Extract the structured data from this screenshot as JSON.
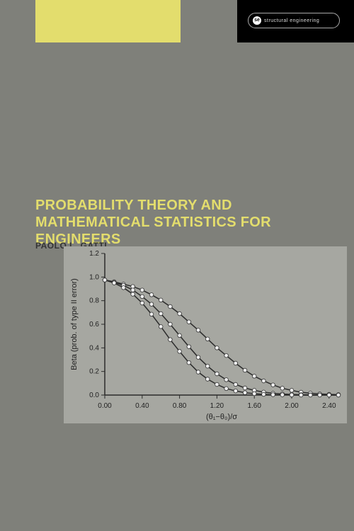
{
  "top_bar": {
    "yellow_color": "#e3dd6d",
    "black_color": "#000000",
    "se_badge": {
      "circle_text": "se",
      "label": "structural engineering"
    }
  },
  "title": {
    "line1": "PROBABILITY THEORY AND",
    "line2": "MATHEMATICAL STATISTICS FOR ENGINEERS",
    "color": "#e3dd6d",
    "fontsize": 20
  },
  "author": "PAOLO L. GATTI",
  "chart": {
    "type": "line",
    "background_color": "#a6a7a1",
    "axis_color": "#2b2b2b",
    "xlabel": "(θ₁−θ₀)/σ",
    "ylabel": "Beta (prob. of type II error)",
    "label_fontsize": 11,
    "tick_fontsize": 10,
    "xlim": [
      0.0,
      2.5
    ],
    "ylim": [
      0.0,
      1.2
    ],
    "xticks": [
      0.0,
      0.4,
      0.8,
      1.2,
      1.6,
      2.0,
      2.4
    ],
    "yticks": [
      0.0,
      0.2,
      0.4,
      0.6,
      0.8,
      1.0,
      1.2
    ],
    "marker_fill": "#eee",
    "marker_stroke": "#333",
    "marker_radius": 2.8,
    "line_color": "#2b2b2b",
    "line_width": 1.5,
    "series_x": [
      0.0,
      0.1,
      0.2,
      0.3,
      0.4,
      0.5,
      0.6,
      0.7,
      0.8,
      0.9,
      1.0,
      1.1,
      1.2,
      1.3,
      1.4,
      1.5,
      1.6,
      1.7,
      1.8,
      1.9,
      2.0,
      2.1,
      2.2,
      2.3,
      2.4,
      2.5
    ],
    "series": [
      {
        "y": [
          0.975,
          0.96,
          0.94,
          0.92,
          0.89,
          0.85,
          0.805,
          0.75,
          0.69,
          0.62,
          0.55,
          0.475,
          0.4,
          0.335,
          0.27,
          0.21,
          0.16,
          0.12,
          0.086,
          0.058,
          0.04,
          0.024,
          0.016,
          0.01,
          0.006,
          0.004
        ]
      },
      {
        "y": [
          0.975,
          0.955,
          0.93,
          0.89,
          0.835,
          0.77,
          0.69,
          0.6,
          0.505,
          0.41,
          0.32,
          0.245,
          0.18,
          0.13,
          0.09,
          0.06,
          0.04,
          0.025,
          0.015,
          0.009,
          0.005,
          0.003,
          0.002,
          0.001,
          0.001,
          0.0
        ]
      },
      {
        "y": [
          0.975,
          0.95,
          0.91,
          0.855,
          0.78,
          0.685,
          0.58,
          0.47,
          0.37,
          0.275,
          0.195,
          0.135,
          0.09,
          0.055,
          0.035,
          0.02,
          0.012,
          0.006,
          0.003,
          0.002,
          0.001,
          0.0,
          0.0,
          0.0,
          0.0,
          0.0
        ]
      }
    ]
  }
}
